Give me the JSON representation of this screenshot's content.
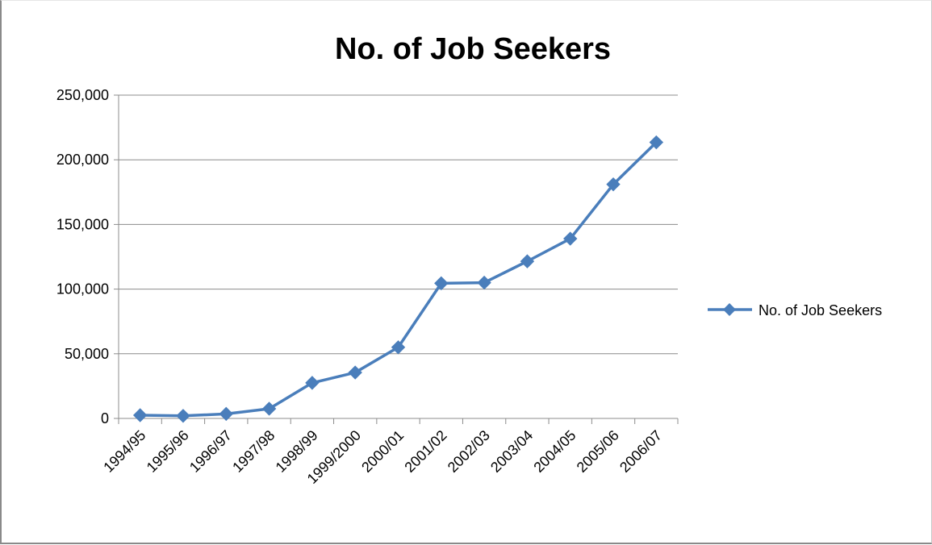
{
  "chart_data": {
    "type": "line",
    "title": "No. of Job Seekers",
    "xlabel": "",
    "ylabel": "",
    "categories": [
      "1994/95",
      "1995/96",
      "1996/97",
      "1997/98",
      "1998/99",
      "1999/2000",
      "2000/01",
      "2001/02",
      "2002/03",
      "2003/04",
      "2004/05",
      "2005/06",
      "2006/07"
    ],
    "series": [
      {
        "name": "No. of Job Seekers",
        "values": [
          2500,
          2000,
          3500,
          7500,
          27500,
          35500,
          55000,
          104500,
          105000,
          121500,
          139000,
          181000,
          213500
        ],
        "color": "#4a7ebb",
        "marker": "diamond"
      }
    ],
    "y_ticks": [
      "0",
      "50,000",
      "100,000",
      "150,000",
      "200,000",
      "250,000"
    ],
    "ylim": [
      0,
      250000
    ],
    "grid": "horizontal",
    "legend": "right"
  }
}
